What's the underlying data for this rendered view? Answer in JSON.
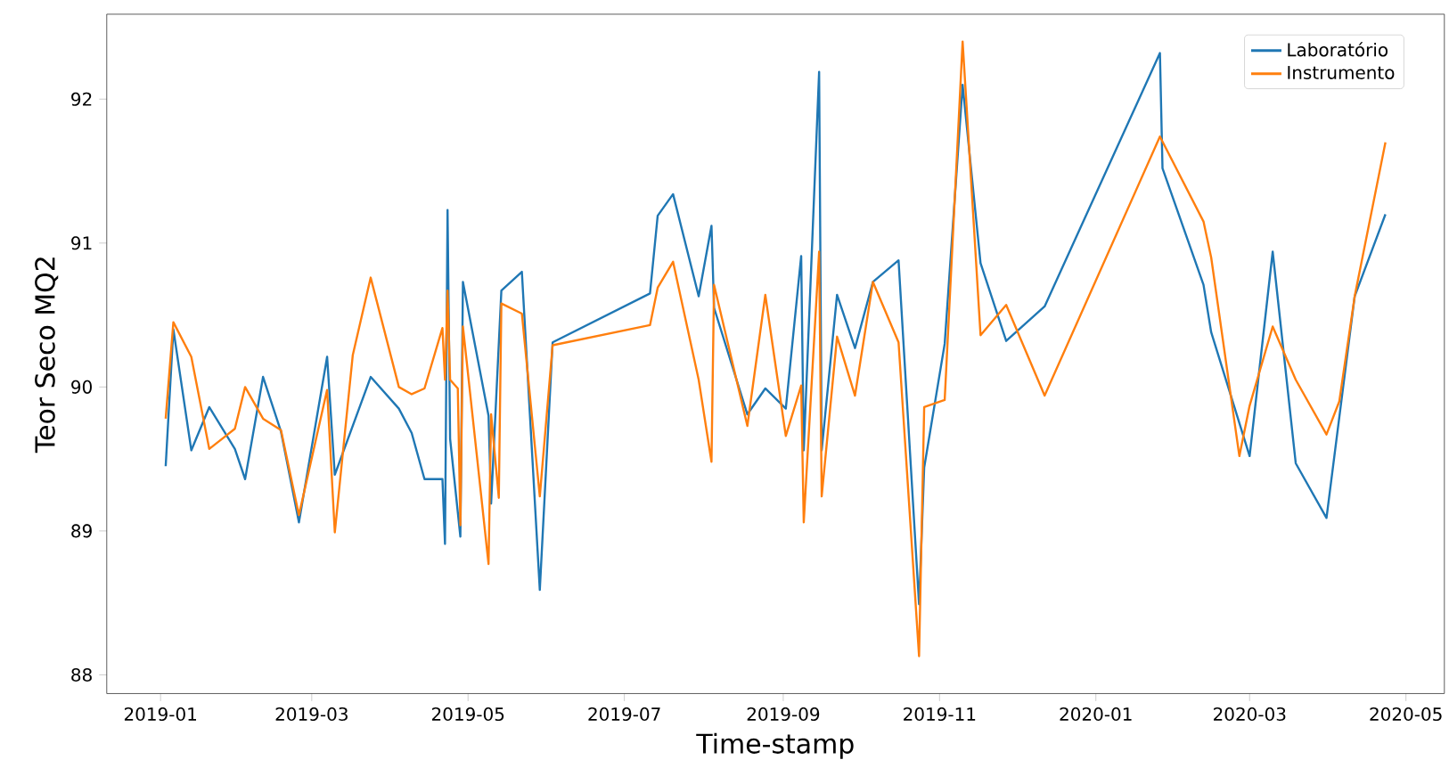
{
  "chart_data": {
    "type": "line",
    "xlabel": "Time-stamp",
    "ylabel": "Teor Seco MQ2",
    "xlim": [
      "2018-12-11",
      "2020-05-16"
    ],
    "ylim": [
      87.87,
      92.59
    ],
    "xticks": [
      "2019-01",
      "2019-03",
      "2019-05",
      "2019-07",
      "2019-09",
      "2019-11",
      "2020-01",
      "2020-03",
      "2020-05"
    ],
    "yticks": [
      88,
      89,
      90,
      91,
      92
    ],
    "grid": false,
    "legend": "top right",
    "marker": "none",
    "line_style": "solid",
    "series": [
      {
        "name": "Laboratório",
        "color": "#1f77b4",
        "x": [
          "2019-01-03",
          "2019-01-06",
          "2019-01-13",
          "2019-01-20",
          "2019-01-30",
          "2019-02-03",
          "2019-02-10",
          "2019-02-17",
          "2019-02-24",
          "2019-03-07",
          "2019-03-10",
          "2019-03-24",
          "2019-04-04",
          "2019-04-09",
          "2019-04-14",
          "2019-04-21",
          "2019-04-22",
          "2019-04-23",
          "2019-04-24",
          "2019-04-28",
          "2019-04-29",
          "2019-05-09",
          "2019-05-10",
          "2019-05-14",
          "2019-05-22",
          "2019-05-29",
          "2019-06-03",
          "2019-07-11",
          "2019-07-14",
          "2019-07-20",
          "2019-07-30",
          "2019-08-04",
          "2019-08-05",
          "2019-08-18",
          "2019-08-25",
          "2019-09-02",
          "2019-09-08",
          "2019-09-09",
          "2019-09-15",
          "2019-09-16",
          "2019-09-22",
          "2019-09-29",
          "2019-10-06",
          "2019-10-16",
          "2019-10-24",
          "2019-10-26",
          "2019-11-03",
          "2019-11-10",
          "2019-11-17",
          "2019-11-27",
          "2019-12-12",
          "2020-01-26",
          "2020-01-27",
          "2020-02-12",
          "2020-02-15",
          "2020-03-01",
          "2020-03-10",
          "2020-03-19",
          "2020-03-31",
          "2020-04-11",
          "2020-04-23"
        ],
        "values": [
          89.45,
          90.4,
          89.56,
          89.86,
          89.57,
          89.36,
          90.07,
          89.69,
          89.06,
          90.21,
          89.39,
          90.07,
          89.85,
          89.68,
          89.36,
          89.36,
          88.91,
          91.23,
          89.64,
          88.96,
          90.73,
          89.8,
          89.19,
          90.67,
          90.8,
          88.59,
          90.31,
          90.65,
          91.19,
          91.34,
          90.63,
          91.12,
          90.55,
          89.81,
          89.99,
          89.85,
          90.91,
          89.56,
          92.19,
          89.56,
          90.64,
          90.27,
          90.73,
          90.88,
          88.49,
          89.44,
          90.3,
          92.1,
          90.86,
          90.32,
          90.56,
          92.32,
          91.52,
          90.71,
          90.38,
          89.52,
          90.94,
          89.47,
          89.09,
          90.63,
          91.2
        ]
      },
      {
        "name": "Instrumento",
        "color": "#ff7f0e",
        "x": [
          "2019-01-03",
          "2019-01-06",
          "2019-01-13",
          "2019-01-20",
          "2019-01-30",
          "2019-02-03",
          "2019-02-10",
          "2019-02-17",
          "2019-02-24",
          "2019-03-07",
          "2019-03-10",
          "2019-03-17",
          "2019-03-24",
          "2019-04-04",
          "2019-04-09",
          "2019-04-14",
          "2019-04-21",
          "2019-04-22",
          "2019-04-23",
          "2019-04-24",
          "2019-04-27",
          "2019-04-28",
          "2019-04-29",
          "2019-05-09",
          "2019-05-10",
          "2019-05-13",
          "2019-05-14",
          "2019-05-22",
          "2019-05-29",
          "2019-06-03",
          "2019-07-11",
          "2019-07-14",
          "2019-07-20",
          "2019-07-30",
          "2019-08-04",
          "2019-08-05",
          "2019-08-18",
          "2019-08-25",
          "2019-09-02",
          "2019-09-08",
          "2019-09-09",
          "2019-09-15",
          "2019-09-16",
          "2019-09-22",
          "2019-09-29",
          "2019-10-06",
          "2019-10-16",
          "2019-10-24",
          "2019-10-26",
          "2019-11-03",
          "2019-11-10",
          "2019-11-17",
          "2019-11-27",
          "2019-12-12",
          "2020-01-26",
          "2020-02-12",
          "2020-02-15",
          "2020-02-26",
          "2020-03-01",
          "2020-03-10",
          "2020-03-19",
          "2020-03-31",
          "2020-04-05",
          "2020-04-11",
          "2020-04-23"
        ],
        "values": [
          89.78,
          90.45,
          90.21,
          89.57,
          89.71,
          90.0,
          89.78,
          89.7,
          89.11,
          89.98,
          88.99,
          90.22,
          90.76,
          90.0,
          89.95,
          89.99,
          90.41,
          90.05,
          90.67,
          90.05,
          89.99,
          89.04,
          90.42,
          88.77,
          89.81,
          89.23,
          90.58,
          90.51,
          89.24,
          90.29,
          90.43,
          90.69,
          90.87,
          90.05,
          89.48,
          90.71,
          89.73,
          90.64,
          89.66,
          90.01,
          89.06,
          90.94,
          89.24,
          90.35,
          89.94,
          90.73,
          90.31,
          88.13,
          89.86,
          89.91,
          92.4,
          90.36,
          90.57,
          89.94,
          91.74,
          91.15,
          90.9,
          89.52,
          89.87,
          90.42,
          90.05,
          89.67,
          89.9,
          90.63,
          91.7
        ]
      }
    ]
  }
}
